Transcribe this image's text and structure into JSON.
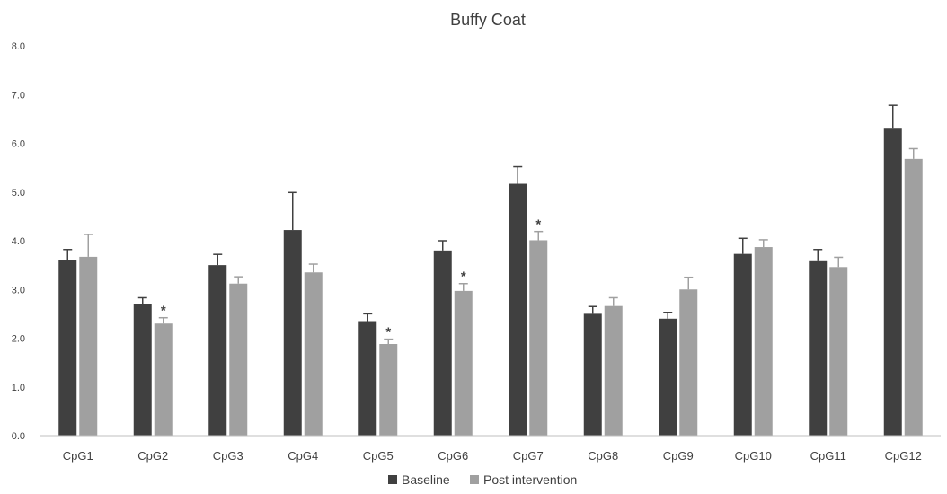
{
  "chart_data": {
    "type": "bar",
    "title": "Buffy Coat",
    "xlabel": "",
    "ylabel": "",
    "ylim": [
      0,
      8
    ],
    "yticks": [
      "0.0",
      "1.0",
      "2.0",
      "3.0",
      "4.0",
      "5.0",
      "6.0",
      "7.0",
      "8.0"
    ],
    "grid": false,
    "legend_position": "bottom",
    "categories": [
      "CpG1",
      "CpG2",
      "CpG3",
      "CpG4",
      "CpG5",
      "CpG6",
      "CpG7",
      "CpG8",
      "CpG9",
      "CpG10",
      "CpG11",
      "CpG12"
    ],
    "series": [
      {
        "name": "Baseline",
        "color": "#404040",
        "values": [
          3.6,
          2.7,
          3.5,
          4.22,
          2.35,
          3.8,
          5.17,
          2.5,
          2.4,
          3.73,
          3.58,
          6.3
        ],
        "error": [
          0.22,
          0.13,
          0.22,
          0.77,
          0.15,
          0.2,
          0.35,
          0.15,
          0.13,
          0.32,
          0.24,
          0.48
        ]
      },
      {
        "name": "Post intervention",
        "color": "#a0a0a0",
        "values": [
          3.67,
          2.3,
          3.12,
          3.35,
          1.88,
          2.97,
          4.01,
          2.66,
          3.0,
          3.87,
          3.46,
          5.68
        ],
        "error": [
          0.46,
          0.12,
          0.14,
          0.17,
          0.1,
          0.15,
          0.18,
          0.17,
          0.25,
          0.15,
          0.2,
          0.21
        ]
      }
    ],
    "significance_marker": "*",
    "significant_post": [
      false,
      true,
      false,
      false,
      true,
      true,
      true,
      false,
      false,
      false,
      false,
      false
    ]
  }
}
